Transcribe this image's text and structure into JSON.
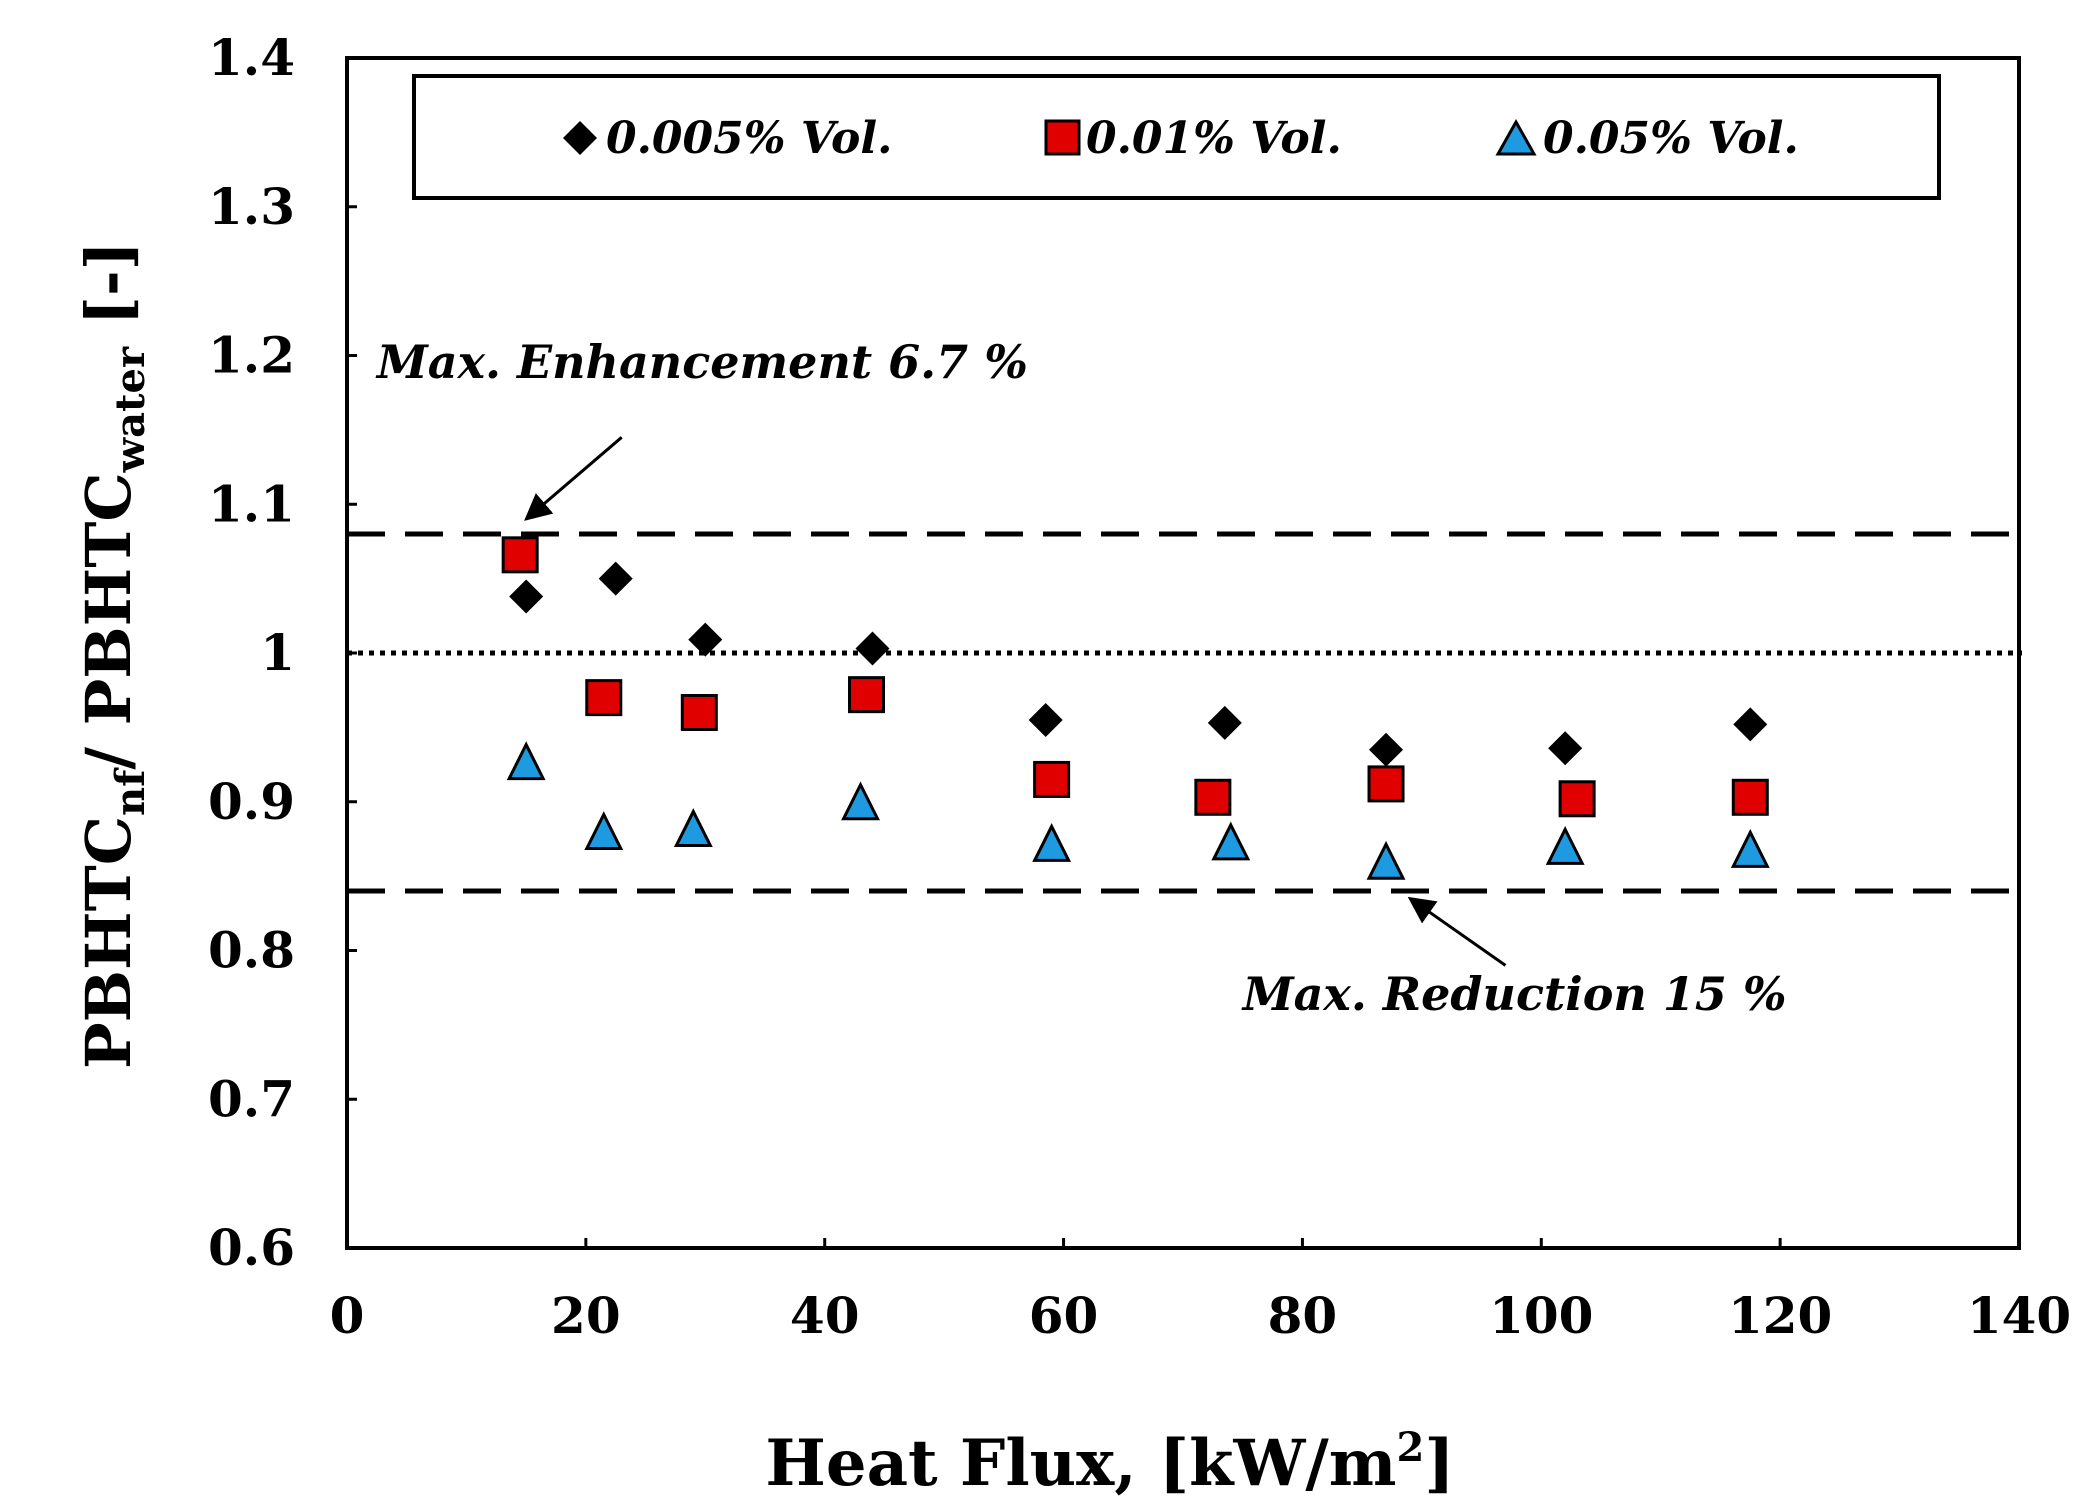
{
  "chart_data": {
    "type": "scatter",
    "title": "",
    "xlabel": "Heat Flux, [kW/m²]",
    "xlabel_main": "Heat Flux, [kW/m",
    "xlabel_sup": "2",
    "xlabel_tail": "]",
    "ylabel": "PBHTC nf / PBHTC water [-]",
    "ylabel_parts": {
      "a": "PBHTC",
      "sub1": "nf",
      "b": "/ PBHTC",
      "sub2": "water",
      "c": " [-]"
    },
    "xlim": [
      0,
      140
    ],
    "ylim": [
      0.6,
      1.4
    ],
    "xticks": [
      0,
      20,
      40,
      60,
      80,
      100,
      120,
      140
    ],
    "xtick_labels": [
      "0",
      "20",
      "40",
      "60",
      "80",
      "100",
      "120",
      "140"
    ],
    "yticks": [
      0.6,
      0.7,
      0.8,
      0.9,
      1.0,
      1.1,
      1.2,
      1.3,
      1.4
    ],
    "ytick_labels": [
      "0.6",
      "0.7",
      "0.8",
      "0.9",
      "1",
      "1.1",
      "1.2",
      "1.3",
      "1.4"
    ],
    "grid": false,
    "legend_position": "top",
    "series": [
      {
        "name": "0.005% Vol.",
        "marker": "diamond",
        "color": "#000000",
        "points": [
          {
            "x": 15,
            "y": 1.038
          },
          {
            "x": 22.5,
            "y": 1.05
          },
          {
            "x": 30,
            "y": 1.009
          },
          {
            "x": 44,
            "y": 1.003
          },
          {
            "x": 58.5,
            "y": 0.955
          },
          {
            "x": 73.5,
            "y": 0.953
          },
          {
            "x": 87,
            "y": 0.935
          },
          {
            "x": 102,
            "y": 0.936
          },
          {
            "x": 117.5,
            "y": 0.952
          }
        ]
      },
      {
        "name": "0.01% Vol.",
        "marker": "square",
        "color": "#e00000",
        "points": [
          {
            "x": 14.5,
            "y": 1.066
          },
          {
            "x": 21.5,
            "y": 0.97
          },
          {
            "x": 29.5,
            "y": 0.96
          },
          {
            "x": 43.5,
            "y": 0.972
          },
          {
            "x": 59,
            "y": 0.915
          },
          {
            "x": 72.5,
            "y": 0.903
          },
          {
            "x": 87,
            "y": 0.912
          },
          {
            "x": 103,
            "y": 0.902
          },
          {
            "x": 117.5,
            "y": 0.903
          }
        ]
      },
      {
        "name": "0.05% Vol.",
        "marker": "triangle",
        "color": "#1e9be0",
        "points": [
          {
            "x": 15,
            "y": 0.927
          },
          {
            "x": 21.5,
            "y": 0.88
          },
          {
            "x": 29,
            "y": 0.882
          },
          {
            "x": 43,
            "y": 0.9
          },
          {
            "x": 59,
            "y": 0.872
          },
          {
            "x": 74,
            "y": 0.873
          },
          {
            "x": 87,
            "y": 0.86
          },
          {
            "x": 102,
            "y": 0.87
          },
          {
            "x": 117.5,
            "y": 0.868
          }
        ]
      }
    ],
    "reference_lines": [
      {
        "name": "max-enhancement-line",
        "y": 1.08,
        "style": "dashed"
      },
      {
        "name": "baseline-line",
        "y": 1.0,
        "style": "dotted"
      },
      {
        "name": "max-reduction-line",
        "y": 0.84,
        "style": "dashed"
      }
    ],
    "annotations": [
      {
        "name": "max-enhancement-annotation",
        "text": "Max. Enhancement   6.7 %",
        "text_x": 2.5,
        "text_y": 1.185,
        "arrow_from": [
          23,
          1.145
        ],
        "arrow_to": [
          15,
          1.09
        ]
      },
      {
        "name": "max-reduction-annotation",
        "text": "Max. Reduction 15 %",
        "text_x": 75,
        "text_y": 0.76,
        "arrow_from": [
          97,
          0.79
        ],
        "arrow_to": [
          89,
          0.835
        ]
      }
    ]
  }
}
